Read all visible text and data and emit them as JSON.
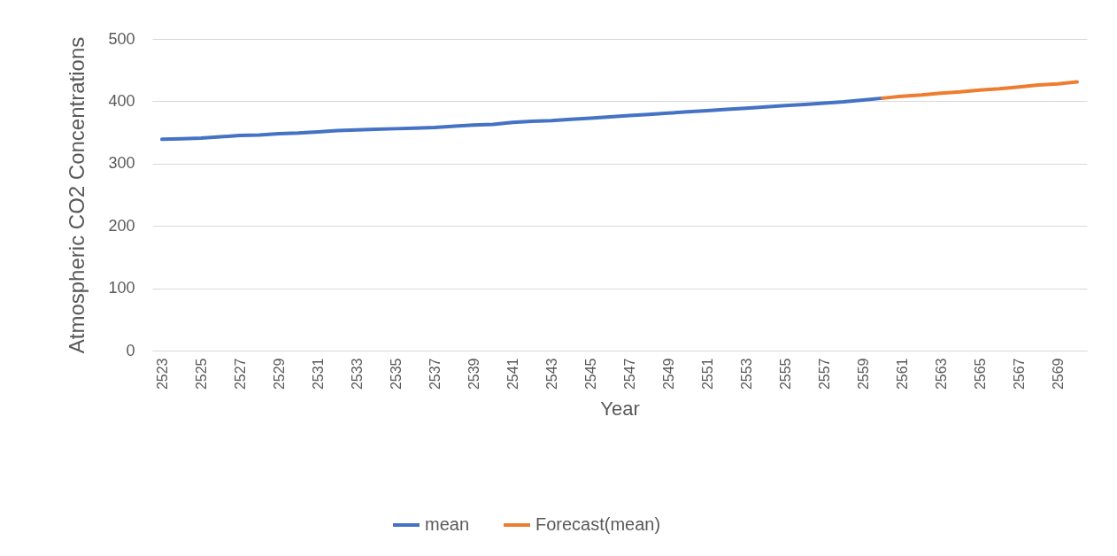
{
  "chart_data": {
    "type": "line",
    "xlabel": "Year",
    "ylabel": "Atmospheric CO2 Concentrations",
    "categories": [
      "2523",
      null,
      "2525",
      null,
      "2527",
      null,
      "2529",
      null,
      "2531",
      null,
      "2533",
      null,
      "2535",
      null,
      "2537",
      null,
      "2539",
      null,
      "2541",
      null,
      "2543",
      null,
      "2545",
      null,
      "2547",
      null,
      "2549",
      null,
      "2551",
      null,
      "2553",
      null,
      "2555",
      null,
      "2557",
      null,
      "2559",
      null,
      "2561",
      null,
      "2563",
      null,
      "2565",
      null,
      "2567",
      null,
      "2569",
      null
    ],
    "series": [
      {
        "name": "mean",
        "color": "#4472c4",
        "values": [
          339,
          340,
          341,
          343,
          345,
          346,
          348,
          349,
          351,
          353,
          354,
          355,
          356,
          357,
          358,
          360,
          362,
          363,
          366,
          368,
          369,
          371,
          373,
          375,
          377,
          379,
          381,
          383,
          385,
          387,
          389,
          391,
          393,
          395,
          397,
          399,
          402,
          405,
          null,
          null,
          null,
          null,
          null,
          null,
          null,
          null,
          null,
          null
        ]
      },
      {
        "name": "Forecast(mean)",
        "color": "#ed7d31",
        "values": [
          null,
          null,
          null,
          null,
          null,
          null,
          null,
          null,
          null,
          null,
          null,
          null,
          null,
          null,
          null,
          null,
          null,
          null,
          null,
          null,
          null,
          null,
          null,
          null,
          null,
          null,
          null,
          null,
          null,
          null,
          null,
          null,
          null,
          null,
          null,
          null,
          null,
          405,
          408,
          410,
          413,
          415,
          418,
          420,
          423,
          426,
          428,
          431
        ]
      }
    ],
    "ylim": [
      0,
      500
    ],
    "yticks": [
      0,
      100,
      200,
      300,
      400,
      500
    ],
    "grid": "y",
    "legend": "bottom"
  }
}
